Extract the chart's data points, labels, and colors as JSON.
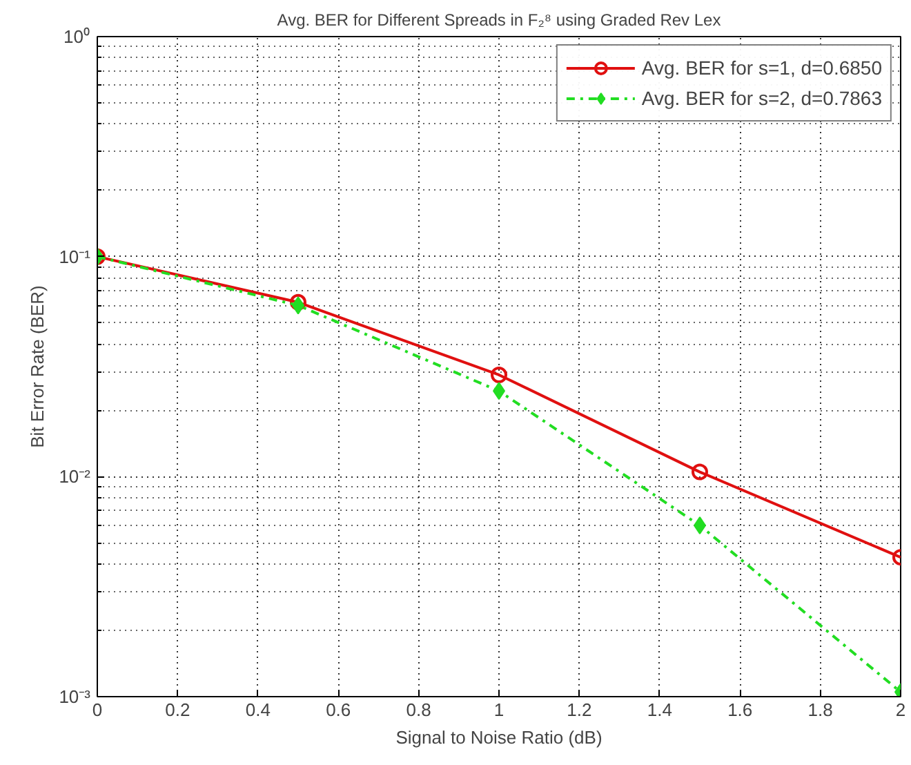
{
  "chart_data": {
    "type": "line",
    "title": "Avg. BER for Different Spreads in F₂⁸ using Graded Rev Lex",
    "xlabel": "Signal to Noise Ratio (dB)",
    "ylabel": "Bit Error Rate (BER)",
    "x": [
      0,
      0.5,
      1,
      1.5,
      2
    ],
    "series": [
      {
        "name": "Avg. BER for s=1, d=0.6850",
        "color": "#e01010",
        "values": [
          0.1,
          0.062,
          0.029,
          0.0105,
          0.0043
        ],
        "marker": "circle",
        "line_style": "solid"
      },
      {
        "name": "Avg. BER for s=2, d=0.7863",
        "color": "#22dd22",
        "values": [
          0.1,
          0.06,
          0.0245,
          0.006,
          0.00105
        ],
        "marker": "diamond",
        "line_style": "dashdot"
      }
    ],
    "xlim": [
      0,
      2
    ],
    "xticks": [
      0,
      0.2,
      0.4,
      0.6,
      0.8,
      1,
      1.2,
      1.4,
      1.6,
      1.8,
      2
    ],
    "ylim": [
      0.001,
      1
    ],
    "yticks": [
      {
        "value": 0.001,
        "label": "10⁻³"
      },
      {
        "value": 0.01,
        "label": "10⁻²"
      },
      {
        "value": 0.1,
        "label": "10⁻¹"
      },
      {
        "value": 1,
        "label": "10⁰"
      }
    ],
    "log": "y",
    "grid": true,
    "legend": "top right"
  }
}
